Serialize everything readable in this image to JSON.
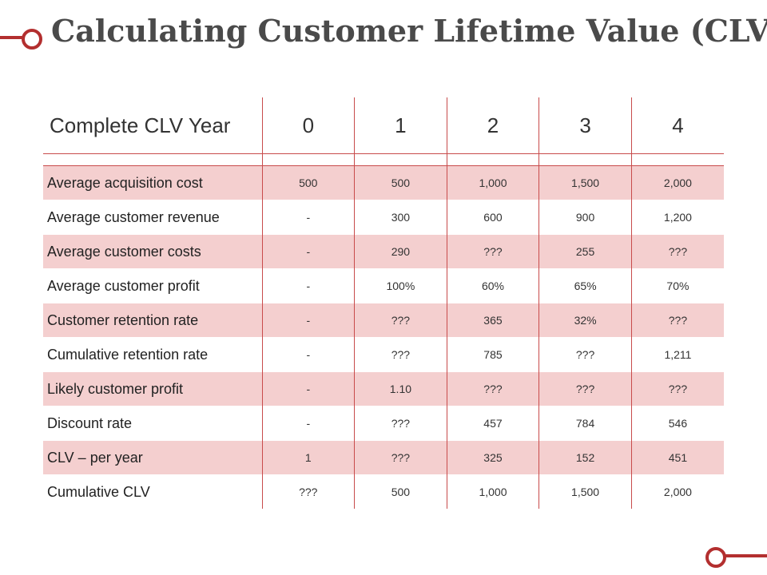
{
  "title": "Calculating Customer Lifetime Value (CLV)",
  "colors": {
    "accent": "#b32f2f",
    "row_shade": "#f4cfcf",
    "grid_line": "#c84b4b",
    "title_text": "#4a4a4a"
  },
  "table": {
    "header_label": "Complete CLV Year",
    "years": [
      "0",
      "1",
      "2",
      "3",
      "4"
    ],
    "rows": [
      {
        "label": "Average acquisition cost",
        "values": [
          "500",
          "500",
          "1,000",
          "1,500",
          "2,000"
        ]
      },
      {
        "label": "Average customer revenue",
        "values": [
          "-",
          "300",
          "600",
          "900",
          "1,200"
        ]
      },
      {
        "label": "Average customer costs",
        "values": [
          "-",
          "290",
          "???",
          "255",
          "???"
        ]
      },
      {
        "label": "Average customer profit",
        "values": [
          "-",
          "100%",
          "60%",
          "65%",
          "70%"
        ]
      },
      {
        "label": "Customer retention rate",
        "values": [
          "-",
          "???",
          "365",
          "32%",
          "???"
        ]
      },
      {
        "label": "Cumulative retention rate",
        "values": [
          "-",
          "???",
          "785",
          "???",
          "1,211"
        ]
      },
      {
        "label": "Likely customer profit",
        "values": [
          "-",
          "1.10",
          "???",
          "???",
          "???"
        ]
      },
      {
        "label": "Discount rate",
        "values": [
          "-",
          "???",
          "457",
          "784",
          "546"
        ]
      },
      {
        "label": "CLV – per year",
        "values": [
          "1",
          "???",
          "325",
          "152",
          "451"
        ]
      },
      {
        "label": "Cumulative CLV",
        "values": [
          "???",
          "500",
          "1,000",
          "1,500",
          "2,000"
        ]
      }
    ]
  }
}
